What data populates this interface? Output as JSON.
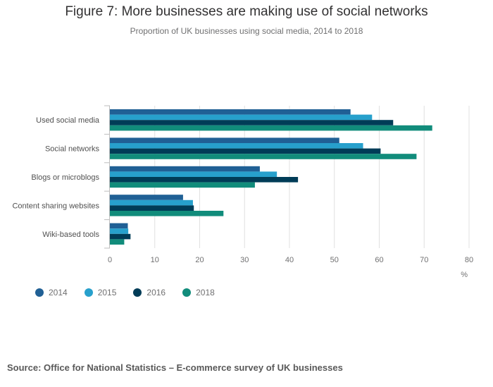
{
  "header": {
    "title": "Figure 7: More businesses are making use of social networks",
    "subtitle": "Proportion of UK businesses using social media, 2014 to 2018"
  },
  "footer": {
    "source": "Source: Office for National Statistics – E-commerce survey of UK businesses"
  },
  "colors": {
    "2014": "#206095",
    "2015": "#27a0cc",
    "2016": "#003c57",
    "2018": "#118c7b",
    "grid": "#e0e0e0",
    "text": "#707071"
  },
  "chart_data": {
    "type": "bar",
    "orientation": "horizontal",
    "categories": [
      "Used social media",
      "Social networks",
      "Blogs or microblogs",
      "Content sharing websites",
      "Wiki-based tools"
    ],
    "series": [
      {
        "name": "2014",
        "values": [
          53.6,
          51.1,
          33.4,
          16.3,
          4.0
        ]
      },
      {
        "name": "2015",
        "values": [
          58.4,
          56.4,
          37.2,
          18.5,
          4.1
        ]
      },
      {
        "name": "2016",
        "values": [
          63.1,
          60.3,
          41.9,
          18.7,
          4.6
        ]
      },
      {
        "name": "2018",
        "values": [
          71.8,
          68.3,
          32.3,
          25.3,
          3.2
        ]
      }
    ],
    "xlim": [
      0,
      80
    ],
    "xticks": [
      "0",
      "10",
      "20",
      "30",
      "40",
      "50",
      "60",
      "70",
      "80"
    ],
    "xlabel": "%",
    "ylabel": "",
    "grid": true,
    "legend": "bottom-left"
  }
}
